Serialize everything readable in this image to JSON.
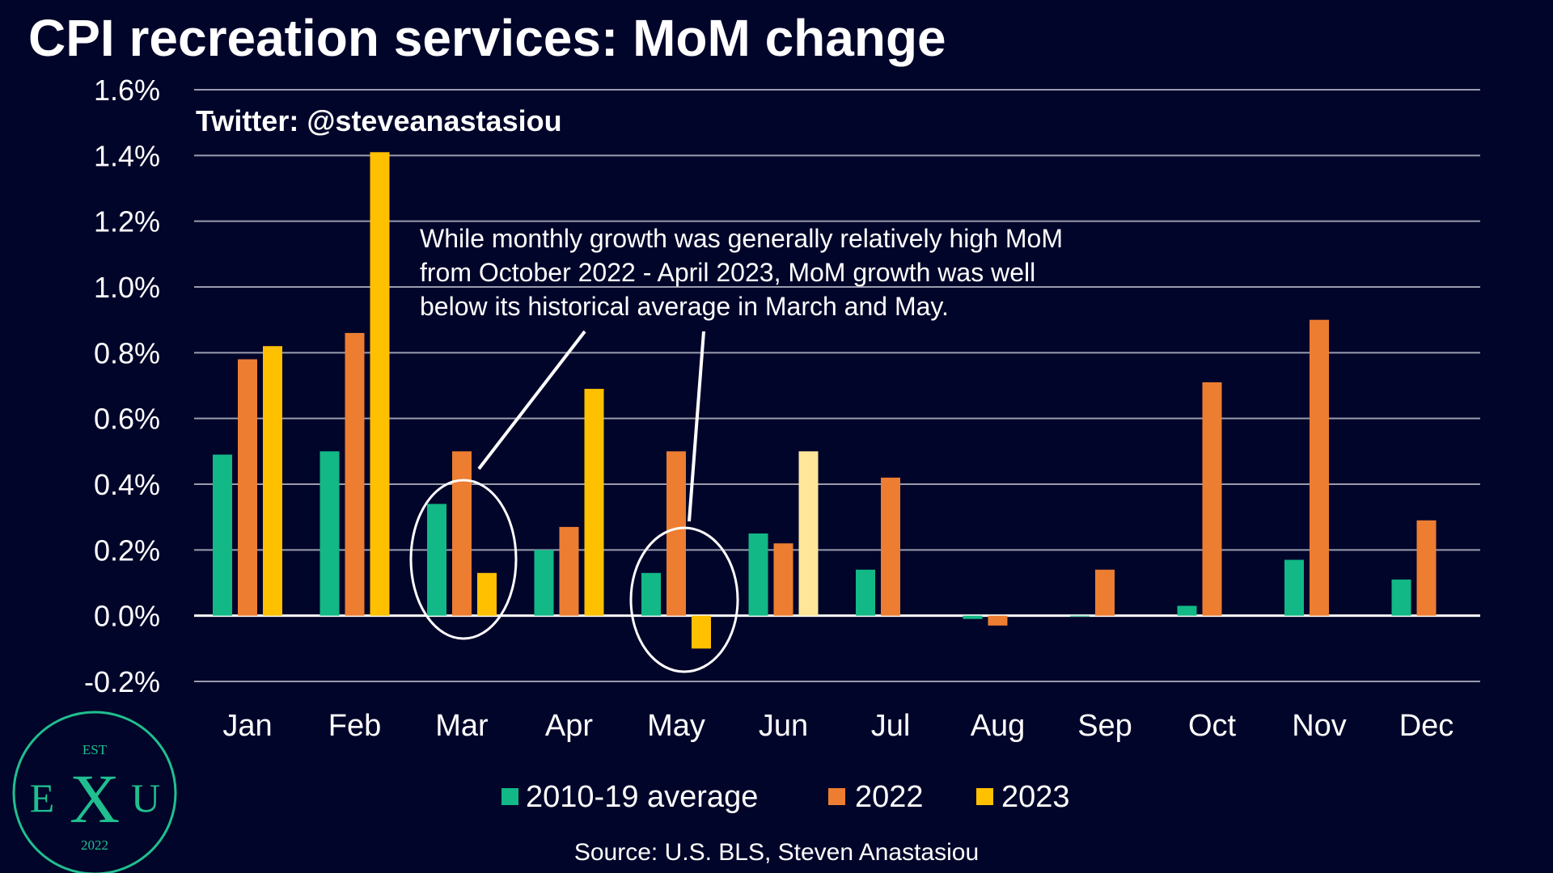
{
  "title": "CPI recreation services: MoM change",
  "watermark": "Twitter: @steveanastasiou",
  "annotation": {
    "lines": [
      "While monthly growth was generally relatively high MoM",
      "from October 2022 - April 2023, MoM growth was well",
      "below its historical average in March and May."
    ]
  },
  "source": "Source: U.S. BLS, Steven Anastasiou",
  "logo": {
    "top": "EST",
    "left_letter": "E",
    "center_letter": "X",
    "right_letter": "U",
    "bottom": "2022"
  },
  "colors": {
    "background": "#02052a",
    "avg": "#12b886",
    "y2022": "#ed7d31",
    "y2023": "#ffc000",
    "y2023_highlight": "#ffe699",
    "logo": "#1fbf8f"
  },
  "chart_data": {
    "type": "bar",
    "categories": [
      "Jan",
      "Feb",
      "Mar",
      "Apr",
      "May",
      "Jun",
      "Jul",
      "Aug",
      "Sep",
      "Oct",
      "Nov",
      "Dec"
    ],
    "series": [
      {
        "name": "2010-19 average",
        "color": "#12b886",
        "values": [
          0.49,
          0.5,
          0.34,
          0.2,
          0.13,
          0.25,
          0.14,
          -0.01,
          0.0,
          0.03,
          0.17,
          0.11
        ]
      },
      {
        "name": "2022",
        "color": "#ed7d31",
        "values": [
          0.78,
          0.86,
          0.5,
          0.27,
          0.5,
          0.22,
          0.42,
          -0.03,
          0.14,
          0.71,
          0.9,
          0.29
        ]
      },
      {
        "name": "2023",
        "color": "#ffc000",
        "values": [
          0.82,
          1.41,
          0.13,
          0.69,
          -0.1,
          0.5,
          null,
          null,
          null,
          null,
          null,
          null
        ],
        "highlight_index": 5,
        "highlight_color": "#ffe699"
      }
    ],
    "ylim": [
      -0.2,
      1.6
    ],
    "yticks": [
      -0.2,
      0.0,
      0.2,
      0.4,
      0.6,
      0.8,
      1.0,
      1.2,
      1.4,
      1.6
    ],
    "ytick_labels": [
      "-0.2%",
      "0.0%",
      "0.2%",
      "0.4%",
      "0.6%",
      "0.8%",
      "1.0%",
      "1.2%",
      "1.4%",
      "1.6%"
    ],
    "grid": true,
    "legend_position": "bottom-center",
    "xlabel": "",
    "ylabel": ""
  }
}
